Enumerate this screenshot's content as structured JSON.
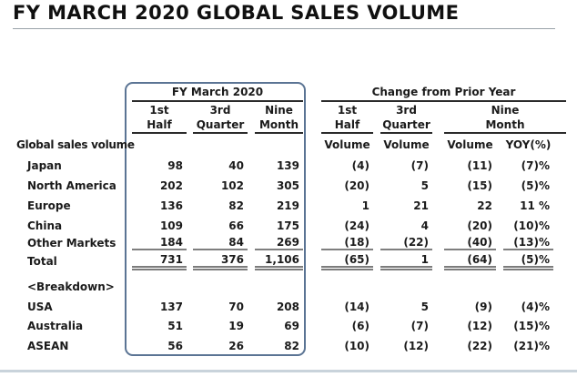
{
  "title": "FY MARCH 2020 GLOBAL SALES VOLUME",
  "colors": {
    "box_border": "#5b7494",
    "header_rule": "#2b2b2b",
    "data_rule": "#7f7f7f",
    "title_rule": "#9aa2a8",
    "footer_rule": "#c9d3db",
    "text": "#1b1b1b"
  },
  "table": {
    "left_group": {
      "title": "FY March 2020",
      "cols": [
        [
          "1st",
          "Half"
        ],
        [
          "3rd",
          "Quarter"
        ],
        [
          "Nine",
          "Month"
        ]
      ]
    },
    "right_group": {
      "title": "Change from Prior Year",
      "cols": [
        [
          "1st",
          "Half"
        ],
        [
          "3rd",
          "Quarter"
        ],
        [
          "Nine",
          "Month"
        ]
      ],
      "sub_cols": [
        "Volume",
        "Volume",
        "Volume",
        "YOY(%)"
      ]
    },
    "section_label": "Global sales volume",
    "rows": [
      {
        "label": "Japan",
        "fy": [
          "98",
          "40",
          "139"
        ],
        "change": [
          "(4)",
          "(7)",
          "(11)",
          "(7)%"
        ]
      },
      {
        "label": "North America",
        "fy": [
          "202",
          "102",
          "305"
        ],
        "change": [
          "(20)",
          "5",
          "(15)",
          "(5)%"
        ]
      },
      {
        "label": "Europe",
        "fy": [
          "136",
          "82",
          "219"
        ],
        "change": [
          "1",
          "21",
          "22",
          "11 %"
        ]
      },
      {
        "label": "China",
        "fy": [
          "109",
          "66",
          "175"
        ],
        "change": [
          "(24)",
          "4",
          "(20)",
          "(10)%"
        ]
      },
      {
        "label": "Other Markets",
        "fy": [
          "184",
          "84",
          "269"
        ],
        "change": [
          "(18)",
          "(22)",
          "(40)",
          "(13)%"
        ]
      },
      {
        "label": "Total",
        "fy": [
          "731",
          "376",
          "1,106"
        ],
        "change": [
          "(65)",
          "1",
          "(64)",
          "(5)%"
        ]
      },
      {
        "label": "<Breakdown>"
      },
      {
        "label": "USA",
        "fy": [
          "137",
          "70",
          "208"
        ],
        "change": [
          "(14)",
          "5",
          "(9)",
          "(4)%"
        ]
      },
      {
        "label": "Australia",
        "fy": [
          "51",
          "19",
          "69"
        ],
        "change": [
          "(6)",
          "(7)",
          "(12)",
          "(15)%"
        ]
      },
      {
        "label": "ASEAN",
        "fy": [
          "56",
          "26",
          "82"
        ],
        "change": [
          "(10)",
          "(12)",
          "(22)",
          "(21)%"
        ]
      }
    ]
  },
  "chart_data": {
    "type": "table",
    "title": "FY MARCH 2020 GLOBAL SALES VOLUME",
    "column_groups": [
      "FY March 2020",
      "Change from Prior Year"
    ],
    "columns": [
      "1st Half",
      "3rd Quarter",
      "Nine Month",
      "1st Half Volume",
      "3rd Quarter Volume",
      "Nine Month Volume",
      "Nine Month YOY(%)"
    ],
    "row_labels": [
      "Japan",
      "North America",
      "Europe",
      "China",
      "Other Markets",
      "Total",
      "USA",
      "Australia",
      "ASEAN"
    ],
    "values": [
      [
        98,
        40,
        139,
        -4,
        -7,
        -11,
        "(7)%"
      ],
      [
        202,
        102,
        305,
        -20,
        5,
        -15,
        "(5)%"
      ],
      [
        136,
        82,
        219,
        1,
        21,
        22,
        "11 %"
      ],
      [
        109,
        66,
        175,
        -24,
        4,
        -20,
        "(10)%"
      ],
      [
        184,
        84,
        269,
        -18,
        -22,
        -40,
        "(13)%"
      ],
      [
        731,
        376,
        1106,
        -65,
        1,
        -64,
        "(5)%"
      ],
      [
        137,
        70,
        208,
        -14,
        5,
        -9,
        "(4)%"
      ],
      [
        51,
        19,
        69,
        -6,
        -7,
        -12,
        "(15)%"
      ],
      [
        56,
        26,
        82,
        -10,
        -12,
        -22,
        "(21)%"
      ]
    ]
  }
}
